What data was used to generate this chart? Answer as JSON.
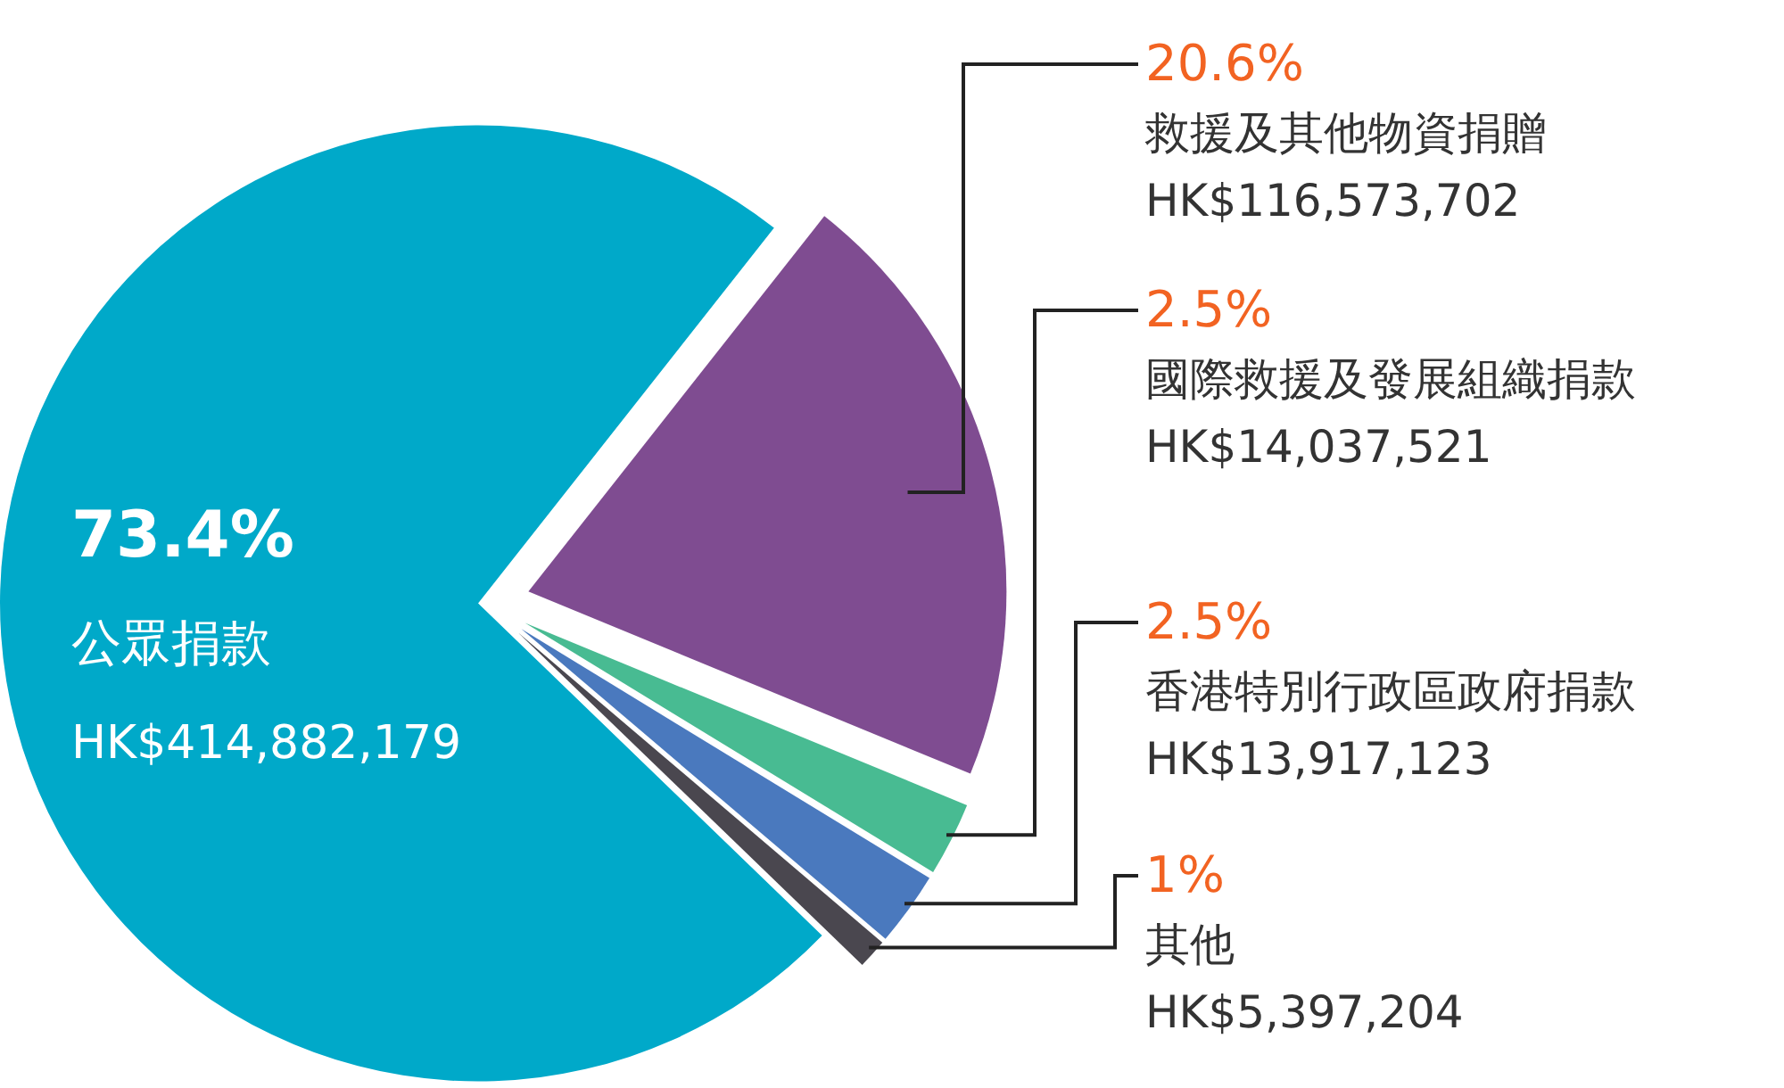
{
  "chart_data": {
    "type": "pie",
    "categories": [
      "公眾捐款",
      "救援及其他物資捐贈",
      "國際救援及發展組織捐款",
      "香港特別行政區政府捐款",
      "其他"
    ],
    "values": [
      73.4,
      20.6,
      2.5,
      2.5,
      1
    ],
    "colors": [
      "#00a9c9",
      "#7f4c91",
      "#48bb92",
      "#4a79be",
      "#4a474f"
    ],
    "value_labels": [
      "73.4%",
      "20.6%",
      "2.5%",
      "2.5%",
      "1%"
    ],
    "annotations": [
      "HK$414,882,179",
      "HK$116,573,702",
      "HK$14,037,521",
      "HK$13,917,123",
      "HK$5,397,204"
    ]
  }
}
